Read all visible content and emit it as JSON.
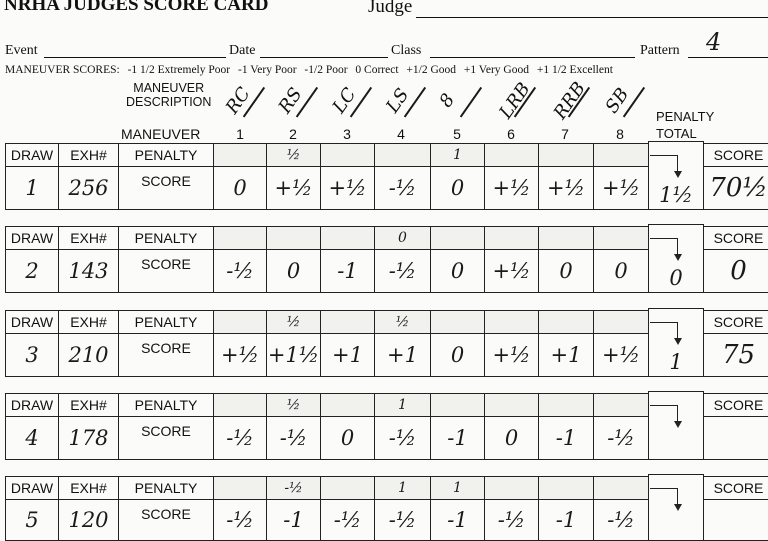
{
  "header": {
    "title": "NRHA JUDGES SCORE CARD",
    "judge_label": "Judge",
    "event_label": "Event",
    "date_label": "Date",
    "class_label": "Class",
    "pattern_label": "Pattern",
    "pattern_value": "4"
  },
  "scale": {
    "label": "MANEUVER SCORES:",
    "items": [
      "-1 1/2 Extremely Poor",
      "-1 Very Poor",
      "-1/2 Poor",
      "0 Correct",
      "+1/2 Good",
      "+1 Very Good",
      "+1 1/2 Excellent"
    ]
  },
  "columns": {
    "maneuver_description_1": "MANEUVER",
    "maneuver_description_2": "DESCRIPTION",
    "maneuver": "MANEUVER",
    "numbers": [
      "1",
      "2",
      "3",
      "4",
      "5",
      "6",
      "7",
      "8"
    ],
    "penalty_1": "PENALTY",
    "penalty_2": "TOTAL",
    "descriptions": [
      "RC",
      "RS",
      "LC",
      "LS",
      "8",
      "LRB",
      "RRB",
      "SB"
    ]
  },
  "labels": {
    "draw": "DRAW",
    "exh": "EXH#",
    "penalty": "PENALTY",
    "score_row": "SCORE",
    "score_head": "SCORE"
  },
  "rows": [
    {
      "draw": "1",
      "exh": "256",
      "penalties": [
        "",
        "½",
        "",
        "",
        "1",
        "",
        "",
        ""
      ],
      "scores": [
        "0",
        "+½",
        "+½",
        "-½",
        "0",
        "+½",
        "+½",
        "+½"
      ],
      "penalty_total": "1½",
      "score": "70½"
    },
    {
      "draw": "2",
      "exh": "143",
      "penalties": [
        "",
        "",
        "",
        "0",
        "",
        "",
        "",
        ""
      ],
      "scores": [
        "-½",
        "0",
        "-1",
        "-½",
        "0",
        "+½",
        "0",
        "0"
      ],
      "penalty_total": "0",
      "score": "0"
    },
    {
      "draw": "3",
      "exh": "210",
      "penalties": [
        "",
        "½",
        "",
        "½",
        "",
        "",
        "",
        ""
      ],
      "scores": [
        "+½",
        "+1½",
        "+1",
        "+1",
        "0",
        "+½",
        "+1",
        "+½"
      ],
      "penalty_total": "1",
      "score": "75"
    },
    {
      "draw": "4",
      "exh": "178",
      "penalties": [
        "",
        "½",
        "",
        "1",
        "",
        "",
        "",
        ""
      ],
      "scores": [
        "-½",
        "-½",
        "0",
        "-½",
        "-1",
        "0",
        "-1",
        "-½"
      ],
      "penalty_total": "",
      "score": ""
    },
    {
      "draw": "5",
      "exh": "120",
      "penalties": [
        "",
        "-½",
        "",
        "1",
        "1",
        "",
        "",
        ""
      ],
      "scores": [
        "-½",
        "-1",
        "-½",
        "-½",
        "-1",
        "-½",
        "-1",
        "-½"
      ],
      "penalty_total": "",
      "score": ""
    }
  ]
}
